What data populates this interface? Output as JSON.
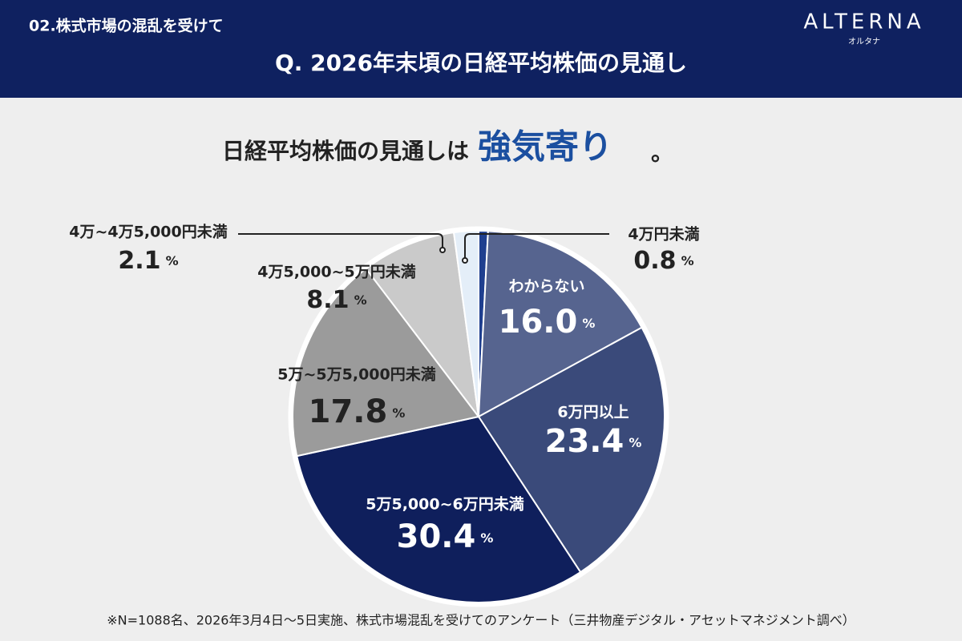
{
  "header": {
    "section": "02.株式市場の混乱を受けて",
    "title": "Q. 2026年末頃の日経平均株価の見通し",
    "logo": "ALTERNA",
    "logo_kana": "オルタナ"
  },
  "headline": {
    "text": "日経平均株価の見通しは",
    "emphasis": "強気寄り",
    "end": "。"
  },
  "chart_data": {
    "type": "pie",
    "categories": [
      "4万円未満",
      "わからない",
      "6万円以上",
      "5万5,000~6万円未満",
      "5万~5万5,000円未満",
      "4万5,000~5万円未満",
      "4万~4万5,000円未満"
    ],
    "values": [
      0.8,
      16.0,
      23.4,
      30.4,
      17.8,
      8.1,
      2.1
    ],
    "value_labels": [
      "0.8",
      "16.0",
      "23.4",
      "30.4",
      "17.8",
      "8.1",
      "2.1"
    ],
    "unit": "%",
    "colors": [
      "#1f3f8f",
      "#56648f",
      "#3a4a7a",
      "#0f1f5c",
      "#9b9b9b",
      "#cacaca",
      "#e4eef8"
    ]
  },
  "footnote": "※N=1088名、2026年3月4日〜5日実施、株式市場混乱を受けてのアンケート（三井物産デジタル・アセットマネジメント調べ）"
}
